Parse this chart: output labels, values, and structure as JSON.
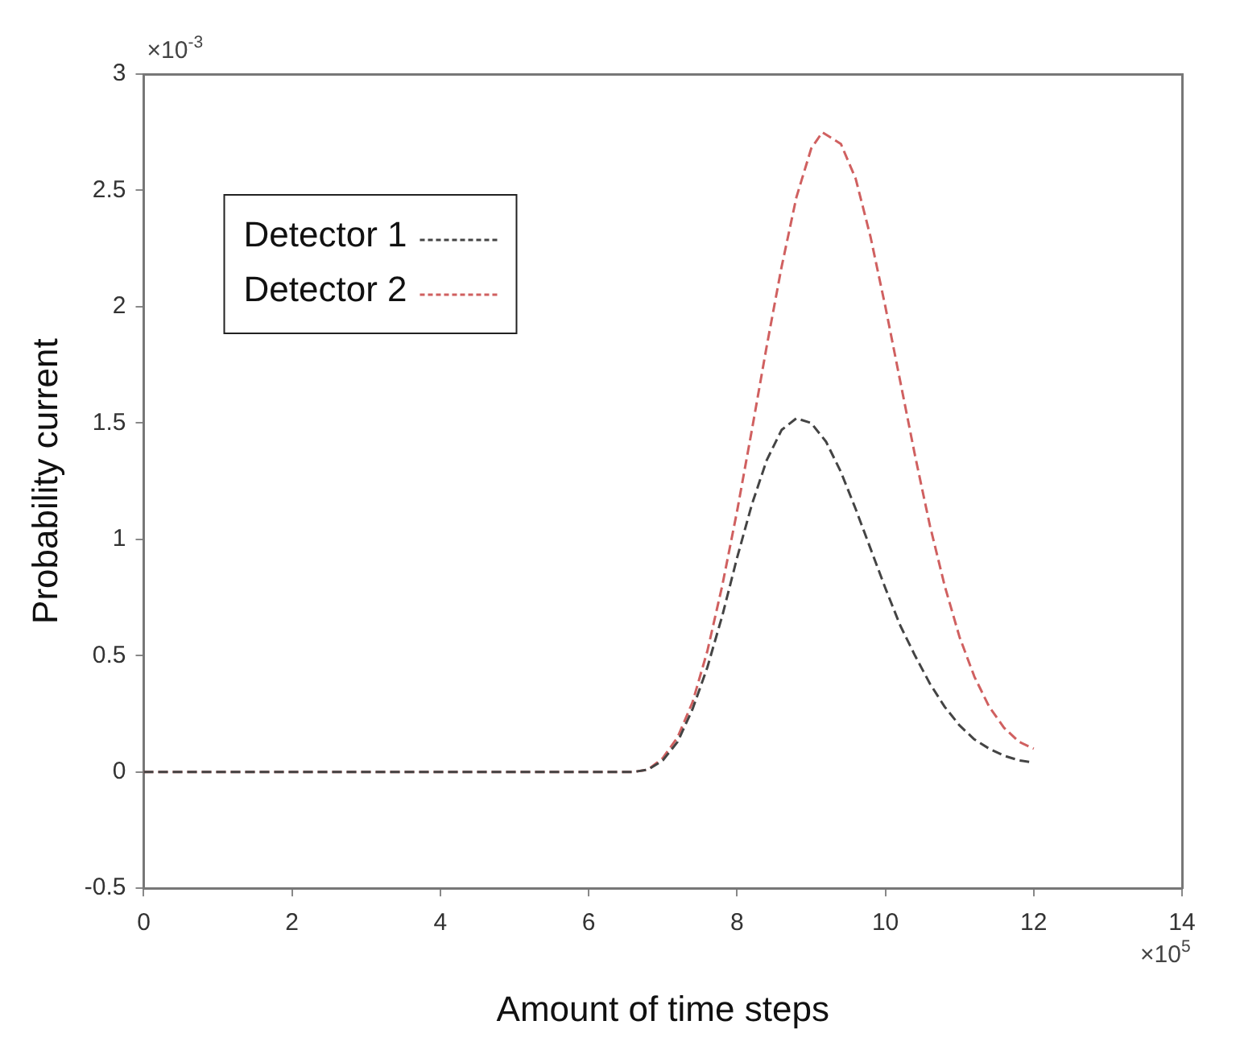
{
  "chart_data": {
    "type": "line",
    "xlabel": "Amount of time steps",
    "ylabel": "Probability current",
    "xlim": [
      0,
      14
    ],
    "xticks": [
      0,
      2,
      4,
      6,
      8,
      10,
      12,
      14
    ],
    "ylim": [
      -0.5,
      3
    ],
    "yticks": [
      -0.5,
      0,
      0.5,
      1,
      1.5,
      2,
      2.5,
      3
    ],
    "grid": false,
    "legend": "top left",
    "line_style": "dashed",
    "marker": "none",
    "annotations": [
      "×10$^{-3}$",
      "×10$^{5}$"
    ],
    "series": [
      {
        "name": "Detector 1",
        "color": "#444444",
        "x": [
          0,
          6.6,
          6.8,
          7.0,
          7.2,
          7.4,
          7.6,
          7.8,
          8.0,
          8.2,
          8.4,
          8.6,
          8.8,
          9.0,
          9.2,
          9.4,
          9.6,
          9.8,
          10.0,
          10.2,
          10.4,
          10.6,
          10.8,
          11.0,
          11.2,
          11.4,
          11.6,
          11.8,
          12
        ],
        "values": [
          0,
          0,
          0.01,
          0.05,
          0.13,
          0.27,
          0.45,
          0.67,
          0.92,
          1.15,
          1.34,
          1.47,
          1.52,
          1.5,
          1.42,
          1.29,
          1.13,
          0.96,
          0.79,
          0.63,
          0.5,
          0.38,
          0.28,
          0.2,
          0.14,
          0.1,
          0.07,
          0.05,
          0.04
        ]
      },
      {
        "name": "Detector 2",
        "color": "#d06060",
        "x": [
          0,
          6.6,
          6.8,
          7.0,
          7.2,
          7.4,
          7.6,
          7.8,
          8.0,
          8.2,
          8.4,
          8.6,
          8.8,
          9.0,
          9.15,
          9.4,
          9.6,
          9.8,
          10.0,
          10.2,
          10.4,
          10.6,
          10.8,
          11.0,
          11.2,
          11.4,
          11.6,
          11.8,
          12
        ],
        "values": [
          0,
          0,
          0.01,
          0.06,
          0.15,
          0.3,
          0.52,
          0.8,
          1.12,
          1.47,
          1.83,
          2.17,
          2.47,
          2.68,
          2.75,
          2.7,
          2.55,
          2.3,
          2.0,
          1.68,
          1.36,
          1.06,
          0.8,
          0.58,
          0.41,
          0.28,
          0.19,
          0.13,
          0.1
        ]
      }
    ]
  }
}
